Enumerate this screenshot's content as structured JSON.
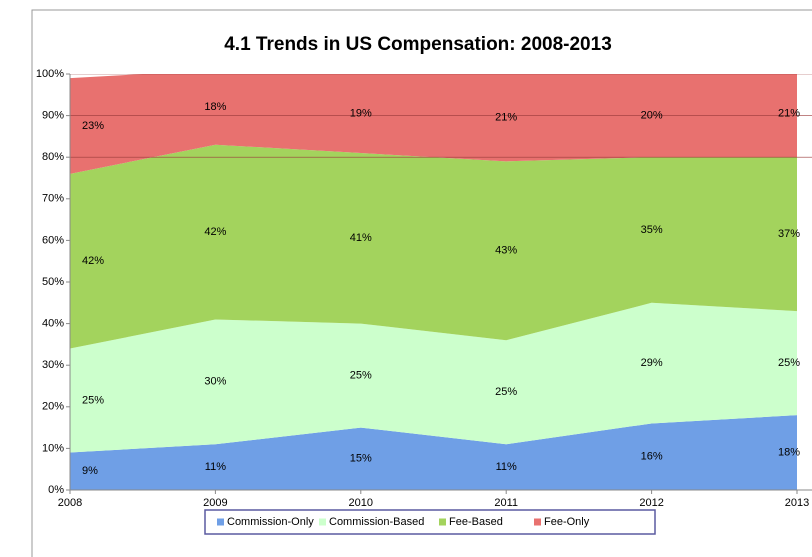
{
  "chart_data": {
    "type": "area",
    "stacked": true,
    "title": "4.1 Trends in US Compensation: 2008-2013",
    "categories": [
      "2008",
      "2009",
      "2010",
      "2011",
      "2012",
      "2013"
    ],
    "series": [
      {
        "name": "Commission-Only",
        "color": "#6f9fe6",
        "values": [
          9,
          11,
          15,
          11,
          16,
          18
        ],
        "value_labels": [
          "9%",
          "11%",
          "15%",
          "11%",
          "16%",
          "18%"
        ]
      },
      {
        "name": "Commission-Based",
        "color": "#ccffcc",
        "values": [
          25,
          30,
          25,
          25,
          29,
          25
        ],
        "value_labels": [
          "25%",
          "30%",
          "25%",
          "25%",
          "29%",
          "25%"
        ]
      },
      {
        "name": "Fee-Based",
        "color": "#a3d35d",
        "values": [
          42,
          42,
          41,
          43,
          35,
          37
        ],
        "value_labels": [
          "42%",
          "42%",
          "41%",
          "43%",
          "35%",
          "37%"
        ]
      },
      {
        "name": "Fee-Only",
        "color": "#e8716f",
        "values": [
          23,
          18,
          19,
          21,
          20,
          21
        ],
        "value_labels": [
          "23%",
          "18%",
          "19%",
          "21%",
          "20%",
          "21%"
        ]
      }
    ],
    "ylim": [
      0,
      100
    ],
    "yticks": [
      {
        "value": 0,
        "label": "0%"
      },
      {
        "value": 10,
        "label": "10%"
      },
      {
        "value": 20,
        "label": "20%"
      },
      {
        "value": 30,
        "label": "30%"
      },
      {
        "value": 40,
        "label": "40%"
      },
      {
        "value": 50,
        "label": "50%"
      },
      {
        "value": 60,
        "label": "60%"
      },
      {
        "value": 70,
        "label": "70%"
      },
      {
        "value": 80,
        "label": "80%"
      },
      {
        "value": 90,
        "label": "90%"
      },
      {
        "value": 100,
        "label": "100%"
      }
    ],
    "grid": true,
    "legend": "bottom"
  }
}
